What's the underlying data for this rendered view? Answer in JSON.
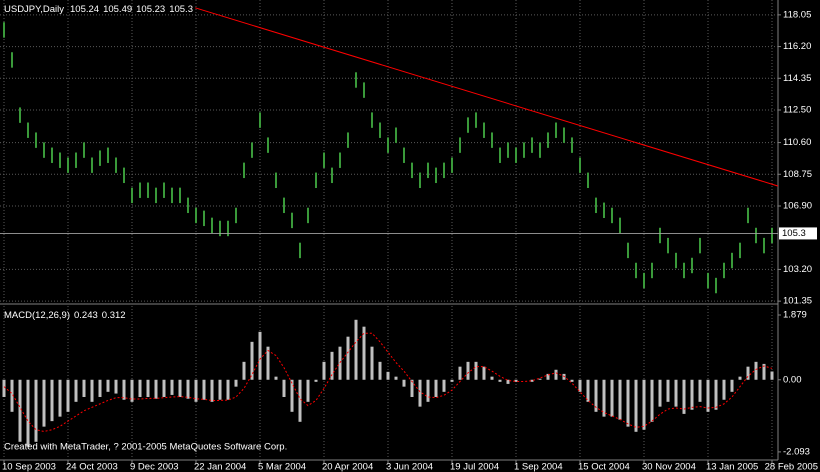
{
  "chart_data": [
    {
      "type": "range_bar",
      "title": "USDJPY,Daily",
      "header_values": [
        105.24,
        105.49,
        105.23,
        105.3
      ],
      "color": "#3a9a3a",
      "grid": true,
      "categories": [
        "10 Sep 2003",
        null,
        null,
        null,
        null,
        null,
        null,
        null,
        "24 Oct 2003",
        null,
        null,
        null,
        null,
        null,
        null,
        null,
        "9 Dec 2003",
        null,
        null,
        null,
        null,
        null,
        null,
        null,
        "22 Jan 2004",
        null,
        null,
        null,
        null,
        null,
        null,
        null,
        "5 Mar 2004",
        null,
        null,
        null,
        null,
        null,
        null,
        null,
        "20 Apr 2004",
        null,
        null,
        null,
        null,
        null,
        null,
        null,
        "3 Jun 2004",
        null,
        null,
        null,
        null,
        null,
        null,
        null,
        "19 Jul 2004",
        null,
        null,
        null,
        null,
        null,
        null,
        null,
        "1 Sep 2004",
        null,
        null,
        null,
        null,
        null,
        null,
        null,
        "15 Oct 2004",
        null,
        null,
        null,
        null,
        null,
        null,
        null,
        "30 Nov 2004",
        null,
        null,
        null,
        null,
        null,
        null,
        null,
        "13 Jan 2005",
        null,
        null,
        null,
        null,
        null,
        null,
        null,
        "28 Feb 2005"
      ],
      "high": [
        117.62,
        115.87,
        112.65,
        111.77,
        111.19,
        110.61,
        110.31,
        110.02,
        109.73,
        110.02,
        110.61,
        109.73,
        110.14,
        110.31,
        109.73,
        109.14,
        107.97,
        108.27,
        108.27,
        107.97,
        108.27,
        107.97,
        107.97,
        107.39,
        106.8,
        106.63,
        106.22,
        106.04,
        106.04,
        106.8,
        109.43,
        110.61,
        112.36,
        110.9,
        108.85,
        107.39,
        106.51,
        104.76,
        106.8,
        108.85,
        110.02,
        109.14,
        110.02,
        111.19,
        114.7,
        114.11,
        112.36,
        111.77,
        110.9,
        111.48,
        110.31,
        109.43,
        108.85,
        109.43,
        109.14,
        109.43,
        109.73,
        110.9,
        112.07,
        112.36,
        111.77,
        111.19,
        110.31,
        110.61,
        110.31,
        110.61,
        110.9,
        110.61,
        111.19,
        111.77,
        111.48,
        110.9,
        109.73,
        108.85,
        107.39,
        107.1,
        106.8,
        106.22,
        104.76,
        103.59,
        103.0,
        103.59,
        105.63,
        105.04,
        104.17,
        103.59,
        103.88,
        105.04,
        103.0,
        102.71,
        103.59,
        104.17,
        104.76,
        106.8,
        105.63,
        105.04,
        105.63
      ],
      "low": [
        116.72,
        114.97,
        111.75,
        110.87,
        110.29,
        109.71,
        109.41,
        109.12,
        108.83,
        109.12,
        109.71,
        108.83,
        109.24,
        109.41,
        108.83,
        108.24,
        107.07,
        107.37,
        107.37,
        107.07,
        107.37,
        107.07,
        107.07,
        106.49,
        105.9,
        105.73,
        105.32,
        105.14,
        105.14,
        105.9,
        108.53,
        109.71,
        111.46,
        110.0,
        107.95,
        106.49,
        105.61,
        103.86,
        105.9,
        107.95,
        109.12,
        108.24,
        109.12,
        110.29,
        113.8,
        113.21,
        111.46,
        110.87,
        110.0,
        110.58,
        109.41,
        108.53,
        107.95,
        108.53,
        108.24,
        108.53,
        108.83,
        110.0,
        111.17,
        111.46,
        110.87,
        110.29,
        109.41,
        109.71,
        109.41,
        109.71,
        110.0,
        109.71,
        110.29,
        110.87,
        110.58,
        110.0,
        108.83,
        107.95,
        106.49,
        106.2,
        105.9,
        105.32,
        103.86,
        102.69,
        102.1,
        102.69,
        104.73,
        104.14,
        103.27,
        102.69,
        102.98,
        104.14,
        102.1,
        101.81,
        102.69,
        103.27,
        103.86,
        105.9,
        104.73,
        104.14,
        104.73
      ],
      "ylim": [
        101.3,
        118.8
      ],
      "yticks": [
        118.05,
        {
          "value": 116.2,
          "label": "116.20"
        },
        114.35,
        {
          "value": 112.5,
          "label": "112.50"
        },
        {
          "value": 110.6,
          "label": "110.60"
        },
        108.75,
        {
          "value": 106.9,
          "label": "106.90"
        },
        {
          "value": 103.2,
          "label": "103.20"
        },
        101.35
      ],
      "trendline": {
        "color": "#ff0000",
        "from": [
          23.9,
          118.46
        ],
        "to": [
          97.2,
          108.0
        ]
      }
    },
    {
      "type": "macd",
      "title": "MACD(12,26,9)",
      "header_values": [
        0.243,
        0.312
      ],
      "color": "#c0c0c0",
      "signal_color": "#ff0000",
      "values": [
        -0.5,
        -0.93,
        -1.8,
        -1.94,
        -1.8,
        -1.36,
        -1.2,
        -1.07,
        -0.93,
        -0.64,
        -0.5,
        -0.64,
        -0.5,
        -0.35,
        -0.4,
        -0.58,
        -0.64,
        -0.5,
        -0.5,
        -0.55,
        -0.5,
        -0.44,
        -0.5,
        -0.55,
        -0.64,
        -0.58,
        -0.64,
        -0.58,
        -0.58,
        -0.2,
        0.52,
        1.1,
        1.39,
        0.96,
        0.09,
        -0.5,
        -0.93,
        -1.22,
        -0.64,
        -0.06,
        0.52,
        0.81,
        0.96,
        1.25,
        1.74,
        1.54,
        0.96,
        0.52,
        0.23,
        0.09,
        -0.2,
        -0.5,
        -0.78,
        -0.64,
        -0.5,
        -0.35,
        -0.06,
        0.38,
        0.52,
        0.52,
        0.38,
        0.09,
        -0.06,
        -0.12,
        -0.06,
        0,
        -0.06,
        0.03,
        0.17,
        0.29,
        0.17,
        -0.06,
        -0.35,
        -0.64,
        -0.93,
        -1.07,
        -1.07,
        -1.16,
        -1.36,
        -1.51,
        -1.45,
        -1.22,
        -0.78,
        -0.64,
        -0.78,
        -0.99,
        -0.87,
        -0.64,
        -0.93,
        -0.87,
        -0.58,
        -0.35,
        0.09,
        0.38,
        0.52,
        0.46,
        0.24
      ],
      "signal": [
        -0.2,
        -0.4,
        -0.8,
        -1.2,
        -1.45,
        -1.5,
        -1.45,
        -1.35,
        -1.2,
        -1.05,
        -0.9,
        -0.8,
        -0.7,
        -0.6,
        -0.52,
        -0.52,
        -0.56,
        -0.56,
        -0.54,
        -0.54,
        -0.52,
        -0.5,
        -0.49,
        -0.51,
        -0.55,
        -0.57,
        -0.6,
        -0.6,
        -0.59,
        -0.5,
        -0.25,
        0.15,
        0.6,
        0.85,
        0.7,
        0.35,
        -0.1,
        -0.55,
        -0.75,
        -0.6,
        -0.25,
        0.15,
        0.5,
        0.8,
        1.1,
        1.35,
        1.35,
        1.1,
        0.8,
        0.5,
        0.25,
        -0.05,
        -0.35,
        -0.5,
        -0.52,
        -0.45,
        -0.3,
        -0.05,
        0.2,
        0.38,
        0.38,
        0.25,
        0.1,
        -0.02,
        -0.05,
        -0.05,
        -0.03,
        0.05,
        0.14,
        0.2,
        0.1,
        -0.1,
        -0.35,
        -0.6,
        -0.8,
        -0.95,
        -1.05,
        -1.15,
        -1.28,
        -1.38,
        -1.35,
        -1.2,
        -1.0,
        -0.85,
        -0.82,
        -0.85,
        -0.8,
        -0.78,
        -0.82,
        -0.8,
        -0.7,
        -0.5,
        -0.2,
        0.1,
        0.3,
        0.4,
        0.33
      ],
      "ylim": [
        -2.27,
        2.14
      ],
      "yticks": [
        1.879,
        {
          "value": 0,
          "label": "0.00"
        },
        -2.093
      ],
      "annotation": "Created with MetaTrader, ? 2001-2005 MetaQuotes Software Corp."
    }
  ]
}
